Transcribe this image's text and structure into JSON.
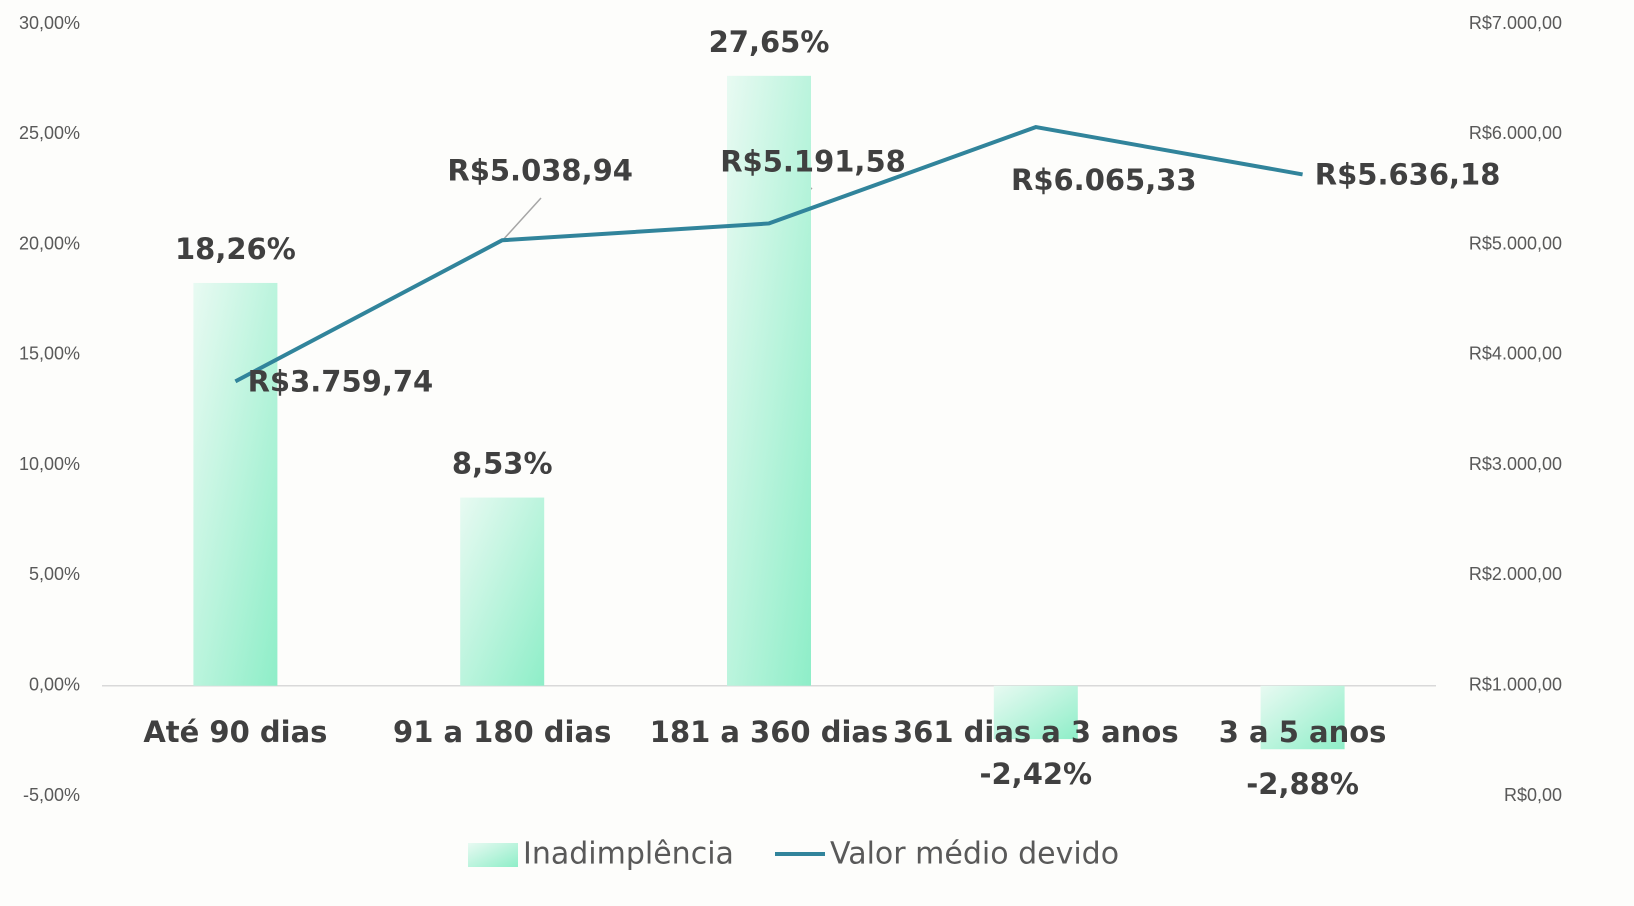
{
  "chart_data": {
    "type": "bar+line",
    "categories": [
      "Até 90 dias",
      "91 a 180 dias",
      "181 a 360 dias",
      "361 dias a 3 anos",
      "3 a 5 anos"
    ],
    "series": [
      {
        "name": "Inadimplência",
        "type": "bar",
        "color": "#9beecb",
        "values": [
          18.26,
          8.53,
          27.65,
          -2.42,
          -2.88
        ],
        "value_labels": [
          "18,26%",
          "8,53%",
          "27,65%",
          "-2,42%",
          "-2,88%"
        ]
      },
      {
        "name": "Valor médio devido",
        "type": "line",
        "axis": "y2",
        "color": "#31849b",
        "values": [
          3759.74,
          5038.94,
          5191.58,
          6065.33,
          5636.18
        ],
        "value_labels": [
          "R$3.759,74",
          "R$5.038,94",
          "R$5.191,58",
          "R$6.065,33",
          "R$5.636,18"
        ]
      }
    ],
    "ylim": [
      -5,
      30
    ],
    "yticks": [
      {
        "value": -5,
        "label": "-5,00%"
      },
      {
        "value": 0,
        "label": "0,00%"
      },
      {
        "value": 5,
        "label": "5,00%"
      },
      {
        "value": 10,
        "label": "10,00%"
      },
      {
        "value": 15,
        "label": "15,00%"
      },
      {
        "value": 20,
        "label": "20,00%"
      },
      {
        "value": 25,
        "label": "25,00%"
      },
      {
        "value": 30,
        "label": "30,00%"
      }
    ],
    "y2lim": [
      0,
      7000
    ],
    "y2ticks": [
      {
        "value": 0,
        "label": "R$0,00"
      },
      {
        "value": 1000,
        "label": "R$1.000,00"
      },
      {
        "value": 2000,
        "label": "R$2.000,00"
      },
      {
        "value": 3000,
        "label": "R$3.000,00"
      },
      {
        "value": 4000,
        "label": "R$4.000,00"
      },
      {
        "value": 5000,
        "label": "R$5.000,00"
      },
      {
        "value": 6000,
        "label": "R$6.000,00"
      },
      {
        "value": 7000,
        "label": "R$7.000,00"
      }
    ],
    "legend": "bottom"
  }
}
